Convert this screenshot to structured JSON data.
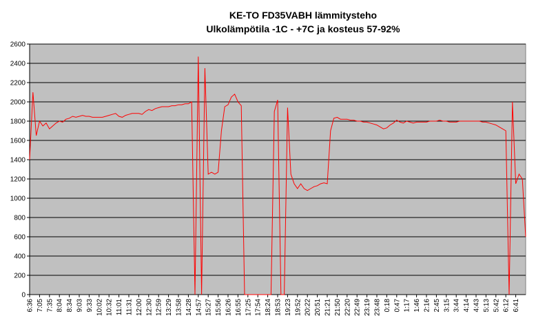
{
  "chart_data": {
    "type": "line",
    "title": "KE-TO FD35VABH lämmitysteho",
    "subtitle": "Ulkolämpötila  -1C - +7C ja kosteus 57-92%",
    "color": "#ff0000",
    "grid": true,
    "ylim": [
      0,
      2600
    ],
    "yticks": [
      0,
      200,
      400,
      600,
      800,
      1000,
      1200,
      1400,
      1600,
      1800,
      2000,
      2200,
      2400,
      2600
    ],
    "categories": [
      "6:36",
      null,
      null,
      "7:05",
      null,
      null,
      "7:35",
      null,
      null,
      "8:04",
      null,
      null,
      "8:34",
      null,
      null,
      "9:03",
      null,
      null,
      "9:33",
      null,
      null,
      "10:02",
      null,
      null,
      "10:32",
      null,
      null,
      "11:01",
      null,
      null,
      "11:31",
      null,
      null,
      "12:00",
      null,
      null,
      "12:30",
      null,
      null,
      "12:59",
      null,
      null,
      "13:29",
      null,
      null,
      "13:58",
      null,
      null,
      "14:28",
      null,
      null,
      "14:57",
      null,
      null,
      "15:27",
      null,
      null,
      "15:56",
      null,
      null,
      "16:26",
      null,
      null,
      "16:55",
      null,
      null,
      "17:25",
      null,
      null,
      "17:54",
      null,
      null,
      "18:24",
      null,
      null,
      "18:53",
      null,
      null,
      "19:23",
      null,
      null,
      "19:52",
      null,
      null,
      "20:22",
      null,
      null,
      "20:51",
      null,
      null,
      "21:21",
      null,
      null,
      "21:50",
      null,
      null,
      "22:20",
      null,
      null,
      "22:49",
      null,
      null,
      "23:19",
      null,
      null,
      "23:48",
      null,
      null,
      "0:18",
      null,
      null,
      "0:47",
      null,
      null,
      "1:17",
      null,
      null,
      "1:46",
      null,
      null,
      "2:16",
      null,
      null,
      "2:45",
      null,
      null,
      "3:15",
      null,
      null,
      "3:44",
      null,
      null,
      "4:14",
      null,
      null,
      "4:43",
      null,
      null,
      "5:13",
      null,
      null,
      "5:42",
      null,
      null,
      "6:12",
      null,
      null,
      "6:41",
      null,
      null,
      null
    ],
    "values": [
      1400,
      2100,
      1650,
      1800,
      1750,
      1780,
      1720,
      1750,
      1780,
      1800,
      1790,
      1820,
      1830,
      1850,
      1840,
      1850,
      1860,
      1850,
      1850,
      1840,
      1840,
      1840,
      1840,
      1850,
      1860,
      1870,
      1880,
      1850,
      1840,
      1860,
      1870,
      1880,
      1880,
      1880,
      1870,
      1900,
      1920,
      1910,
      1930,
      1940,
      1950,
      1950,
      1950,
      1960,
      1960,
      1970,
      1970,
      1980,
      1980,
      2000,
      0,
      2470,
      0,
      2350,
      1250,
      1270,
      1250,
      1270,
      1700,
      1950,
      1970,
      2050,
      2080,
      2000,
      1960,
      0,
      0,
      0,
      0,
      0,
      0,
      0,
      0,
      0,
      1900,
      2020,
      0,
      0,
      1940,
      1250,
      1150,
      1100,
      1150,
      1100,
      1080,
      1100,
      1120,
      1130,
      1150,
      1160,
      1150,
      1700,
      1830,
      1840,
      1820,
      1820,
      1820,
      1810,
      1810,
      1800,
      1800,
      1790,
      1790,
      1780,
      1770,
      1760,
      1740,
      1720,
      1730,
      1760,
      1780,
      1810,
      1790,
      1780,
      1800,
      1790,
      1780,
      1790,
      1790,
      1790,
      1790,
      1800,
      1800,
      1800,
      1810,
      1800,
      1800,
      1790,
      1790,
      1790,
      1800,
      1800,
      1800,
      1800,
      1800,
      1800,
      1800,
      1790,
      1790,
      1780,
      1770,
      1760,
      1740,
      1720,
      1700,
      0,
      2000,
      1150,
      1250,
      1200,
      600
    ]
  }
}
